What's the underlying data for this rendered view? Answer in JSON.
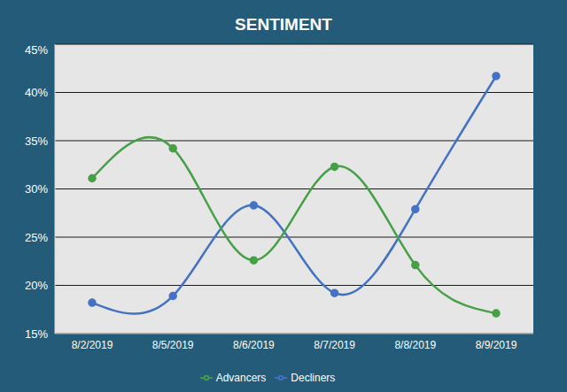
{
  "chart_data": {
    "type": "line",
    "title": "SENTIMENT",
    "categories": [
      "8/2/2019",
      "8/5/2019",
      "8/6/2019",
      "8/7/2019",
      "8/8/2019",
      "8/9/2019"
    ],
    "series": [
      {
        "name": "Decliners",
        "color": "#4472c4",
        "marker": "circle",
        "line_style": "solid",
        "values": [
          18.2,
          18.9,
          28.3,
          19.2,
          27.9,
          41.7
        ]
      },
      {
        "name": "Advancers",
        "color": "#46a046",
        "marker": "circle",
        "line_style": "solid",
        "values": [
          31.1,
          34.2,
          22.6,
          32.3,
          22.1,
          17.1
        ]
      }
    ],
    "ylim": [
      15,
      45
    ],
    "yticks": [
      {
        "value": 15,
        "label": "15%"
      },
      {
        "value": 20,
        "label": "20%"
      },
      {
        "value": 25,
        "label": "25%"
      },
      {
        "value": 30,
        "label": "30%"
      },
      {
        "value": 35,
        "label": "35%"
      },
      {
        "value": 40,
        "label": "40%"
      },
      {
        "value": 45,
        "label": "45%"
      }
    ],
    "grid": true,
    "legend": "bottom"
  }
}
